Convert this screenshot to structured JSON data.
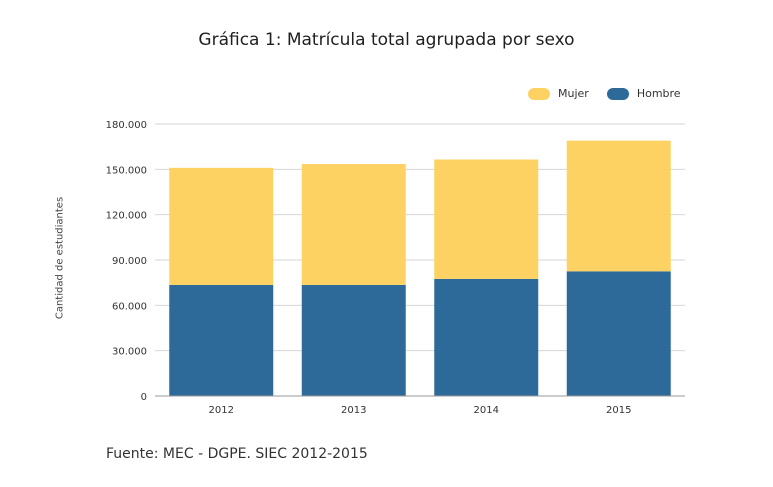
{
  "chart_data": {
    "type": "bar",
    "stacked": true,
    "title": "Gráfica 1: Matrícula total agrupada por sexo",
    "xlabel": "",
    "ylabel": "Cantidad de estudiantes",
    "categories": [
      "2012",
      "2013",
      "2014",
      "2015"
    ],
    "series": [
      {
        "name": "Hombre",
        "color": "#2e6a99",
        "values": [
          73500,
          73500,
          77500,
          82500
        ]
      },
      {
        "name": "Mujer",
        "color": "#fdd262",
        "values": [
          77500,
          80000,
          79000,
          86500
        ]
      }
    ],
    "ylim": [
      0,
      180000
    ],
    "yticks": [
      0,
      30000,
      60000,
      90000,
      120000,
      150000,
      180000
    ],
    "ytick_labels": [
      "0",
      "30.000",
      "60.000",
      "90.000",
      "120.000",
      "150.000",
      "180.000"
    ],
    "grid": true,
    "legend_position": "top-right",
    "legend_order": [
      "Mujer",
      "Hombre"
    ]
  },
  "source_note": "Fuente: MEC - DGPE. SIEC 2012-2015"
}
